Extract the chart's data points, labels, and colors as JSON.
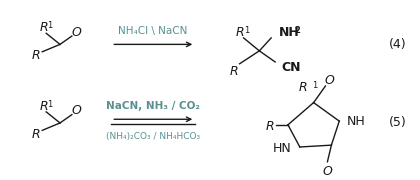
{
  "background_color": "#ffffff",
  "teal_color": "#5a9090",
  "text_color": "#1a1a1a",
  "reaction1": {
    "eq_num": "(4)",
    "arrow_label": "NH₄Cl \\ NaCN"
  },
  "reaction2": {
    "eq_num": "(5)",
    "arrow_label_top": "NaCN, NH₃ / CO₂",
    "arrow_label_bot": "(NH₄)₂CO₃ / NH₄HCO₃"
  }
}
